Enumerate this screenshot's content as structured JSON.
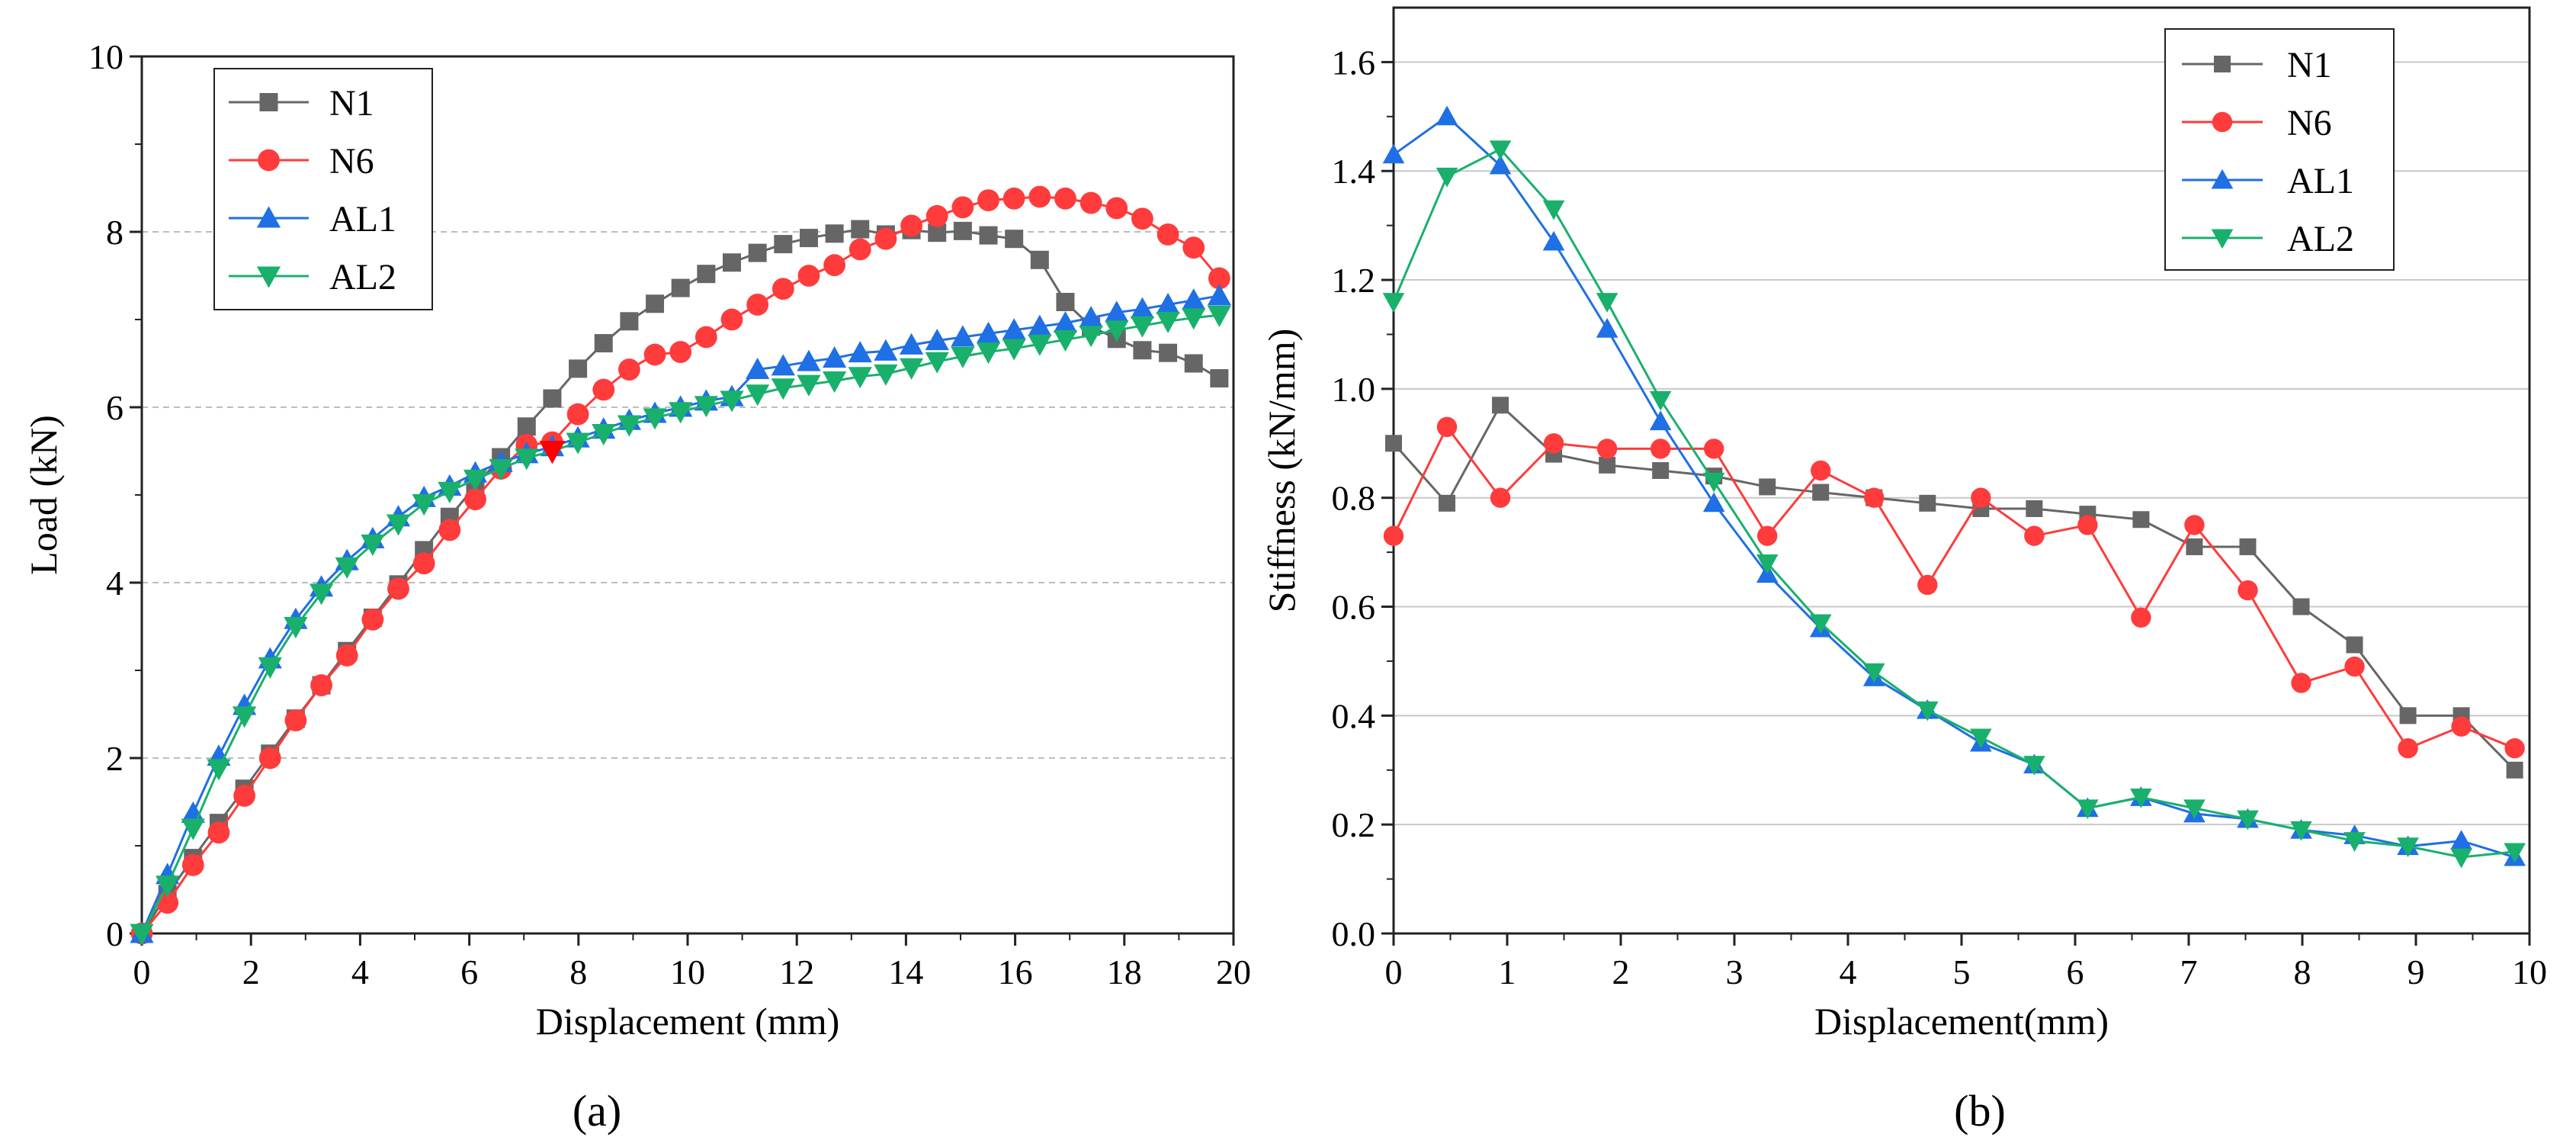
{
  "chart_data": [
    {
      "panel_label": "(a)",
      "type": "line",
      "xlabel": "Displacement (mm)",
      "ylabel": "Load (kN)",
      "xlim": [
        0,
        20
      ],
      "ylim": [
        0,
        10
      ],
      "xticks": [
        0,
        2,
        4,
        6,
        8,
        10,
        12,
        14,
        16,
        18,
        20
      ],
      "yticks": [
        0,
        2,
        4,
        6,
        8,
        10
      ],
      "grid": "dashed horizontal",
      "legend_position": "top-left",
      "series": [
        {
          "name": "N1",
          "color": "#666666",
          "marker": "square",
          "x": [
            0,
            0.47,
            0.94,
            1.41,
            1.88,
            2.35,
            2.82,
            3.29,
            3.76,
            4.23,
            4.7,
            5.17,
            5.64,
            6.11,
            6.58,
            7.05,
            7.52,
            7.99,
            8.46,
            8.93,
            9.4,
            9.87,
            10.34,
            10.81,
            11.28,
            11.75,
            12.22,
            12.69,
            13.16,
            13.63,
            14.1,
            14.57,
            15.04,
            15.51,
            15.98,
            16.45,
            16.92,
            17.39,
            17.86,
            18.33,
            18.8,
            19.27,
            19.74
          ],
          "y": [
            0,
            0.45,
            0.86,
            1.26,
            1.65,
            2.05,
            2.45,
            2.83,
            3.22,
            3.6,
            3.98,
            4.37,
            4.75,
            5.1,
            5.43,
            5.78,
            6.1,
            6.44,
            6.73,
            6.98,
            7.18,
            7.36,
            7.52,
            7.65,
            7.76,
            7.86,
            7.93,
            7.98,
            8.03,
            7.97,
            8.02,
            7.99,
            8.01,
            7.96,
            7.92,
            7.68,
            7.2,
            6.92,
            6.78,
            6.65,
            6.62,
            6.5,
            6.33
          ]
        },
        {
          "name": "N6",
          "color": "#ff3b3b",
          "marker": "circle",
          "x": [
            0,
            0.47,
            0.94,
            1.41,
            1.88,
            2.35,
            2.82,
            3.29,
            3.76,
            4.23,
            4.7,
            5.17,
            5.64,
            6.11,
            6.58,
            7.05,
            7.52,
            7.99,
            8.46,
            8.93,
            9.4,
            9.87,
            10.34,
            10.81,
            11.28,
            11.75,
            12.22,
            12.69,
            13.16,
            13.63,
            14.1,
            14.57,
            15.04,
            15.51,
            15.98,
            16.45,
            16.92,
            17.39,
            17.86,
            18.33,
            18.8,
            19.27,
            19.74
          ],
          "y": [
            0,
            0.35,
            0.78,
            1.15,
            1.57,
            2.0,
            2.43,
            2.83,
            3.17,
            3.58,
            3.93,
            4.22,
            4.6,
            4.95,
            5.3,
            5.57,
            5.6,
            5.92,
            6.2,
            6.43,
            6.6,
            6.63,
            6.8,
            7.0,
            7.17,
            7.35,
            7.5,
            7.62,
            7.8,
            7.92,
            8.07,
            8.18,
            8.28,
            8.36,
            8.38,
            8.4,
            8.38,
            8.33,
            8.27,
            8.15,
            7.97,
            7.82,
            7.47
          ]
        },
        {
          "name": "AL1",
          "color": "#1f6fe5",
          "marker": "triangle-up",
          "x": [
            0,
            0.47,
            0.94,
            1.41,
            1.88,
            2.35,
            2.82,
            3.29,
            3.76,
            4.23,
            4.7,
            5.17,
            5.64,
            6.11,
            6.58,
            7.05,
            7.52,
            7.99,
            8.46,
            8.93,
            9.4,
            9.87,
            10.34,
            10.81,
            11.28,
            11.75,
            12.22,
            12.69,
            13.16,
            13.63,
            14.1,
            14.57,
            15.04,
            15.51,
            15.98,
            16.45,
            16.92,
            17.39,
            17.86,
            18.33,
            18.8,
            19.27,
            19.74
          ],
          "y": [
            0,
            0.67,
            1.37,
            2.02,
            2.6,
            3.13,
            3.58,
            3.95,
            4.25,
            4.5,
            4.75,
            4.97,
            5.1,
            5.25,
            5.37,
            5.47,
            5.55,
            5.65,
            5.75,
            5.85,
            5.93,
            6.0,
            6.07,
            6.12,
            6.43,
            6.47,
            6.52,
            6.56,
            6.62,
            6.64,
            6.71,
            6.76,
            6.8,
            6.84,
            6.88,
            6.92,
            6.96,
            7.02,
            7.08,
            7.12,
            7.17,
            7.22,
            7.27
          ]
        },
        {
          "name": "AL2",
          "color": "#19b06c",
          "marker": "triangle-down",
          "x": [
            0,
            0.47,
            0.94,
            1.41,
            1.88,
            2.35,
            2.82,
            3.29,
            3.76,
            4.23,
            4.7,
            5.17,
            5.64,
            6.11,
            6.58,
            7.05,
            7.52,
            7.99,
            8.46,
            8.93,
            9.4,
            9.87,
            10.34,
            10.81,
            11.28,
            11.75,
            12.22,
            12.69,
            13.16,
            13.63,
            14.1,
            14.57,
            15.04,
            15.51,
            15.98,
            16.45,
            16.92,
            17.39,
            17.86,
            18.33,
            18.8,
            19.27,
            19.74
          ],
          "y": [
            0,
            0.55,
            1.2,
            1.88,
            2.48,
            3.04,
            3.5,
            3.88,
            4.18,
            4.44,
            4.67,
            4.9,
            5.04,
            5.18,
            5.3,
            5.42,
            5.5,
            5.6,
            5.7,
            5.8,
            5.88,
            5.95,
            6.02,
            6.08,
            6.15,
            6.22,
            6.26,
            6.3,
            6.35,
            6.38,
            6.45,
            6.52,
            6.58,
            6.63,
            6.67,
            6.72,
            6.77,
            6.82,
            6.88,
            6.93,
            6.98,
            7.02,
            7.05
          ]
        }
      ],
      "annotations": [
        {
          "type": "marker",
          "shape": "triangle-down",
          "color": "#ff0000",
          "x": 7.52,
          "y": 5.5
        }
      ]
    },
    {
      "panel_label": "(b)",
      "type": "line",
      "xlabel": "Displacement(mm)",
      "ylabel": "Stiffness (kN/mm)",
      "xlim": [
        0,
        10
      ],
      "ylim": [
        0,
        1.7
      ],
      "xticks": [
        0,
        1,
        2,
        3,
        4,
        5,
        6,
        7,
        8,
        9,
        10
      ],
      "yticks": [
        0.0,
        0.2,
        0.4,
        0.6,
        0.8,
        1.0,
        1.2,
        1.4,
        1.6
      ],
      "ytick_labels": [
        "0.0",
        "0.2",
        "0.4",
        "0.6",
        "0.8",
        "1.0",
        "1.2",
        "1.4",
        "1.6"
      ],
      "grid": "horizontal",
      "legend_position": "top-right",
      "series": [
        {
          "name": "N1",
          "color": "#666666",
          "marker": "square",
          "x": [
            0,
            0.47,
            0.94,
            1.41,
            1.88,
            2.35,
            2.82,
            3.29,
            3.76,
            4.23,
            4.7,
            5.17,
            5.64,
            6.11,
            6.58,
            7.05,
            7.52,
            7.99,
            8.46,
            8.93,
            9.4,
            9.87
          ],
          "y": [
            0.9,
            0.79,
            0.97,
            0.88,
            0.86,
            0.85,
            0.84,
            0.82,
            0.81,
            0.8,
            0.79,
            0.78,
            0.78,
            0.77,
            0.76,
            0.71,
            0.71,
            0.6,
            0.53,
            0.4,
            0.4,
            0.3
          ]
        },
        {
          "name": "N6",
          "color": "#ff3b3b",
          "marker": "circle",
          "x": [
            0,
            0.47,
            0.94,
            1.41,
            1.88,
            2.35,
            2.82,
            3.29,
            3.76,
            4.23,
            4.7,
            5.17,
            5.64,
            6.11,
            6.58,
            7.05,
            7.52,
            7.99,
            8.46,
            8.93,
            9.4,
            9.87
          ],
          "y": [
            0.73,
            0.93,
            0.8,
            0.9,
            0.89,
            0.89,
            0.89,
            0.73,
            0.85,
            0.8,
            0.64,
            0.8,
            0.73,
            0.75,
            0.58,
            0.75,
            0.63,
            0.46,
            0.49,
            0.34,
            0.38,
            0.34
          ]
        },
        {
          "name": "AL1",
          "color": "#1f6fe5",
          "marker": "triangle-up",
          "x": [
            0,
            0.47,
            0.94,
            1.41,
            1.88,
            2.35,
            2.82,
            3.29,
            3.76,
            4.23,
            4.7,
            5.17,
            5.64,
            6.11,
            6.58,
            7.05,
            7.52,
            7.99,
            8.46,
            8.93,
            9.4,
            9.87
          ],
          "y": [
            1.43,
            1.5,
            1.41,
            1.27,
            1.11,
            0.94,
            0.79,
            0.66,
            0.56,
            0.47,
            0.41,
            0.35,
            0.31,
            0.23,
            0.25,
            0.22,
            0.21,
            0.19,
            0.18,
            0.16,
            0.17,
            0.14
          ]
        },
        {
          "name": "AL2",
          "color": "#19b06c",
          "marker": "triangle-down",
          "x": [
            0,
            0.47,
            0.94,
            1.41,
            1.88,
            2.35,
            2.82,
            3.29,
            3.76,
            4.23,
            4.7,
            5.17,
            5.64,
            6.11,
            6.58,
            7.05,
            7.52,
            7.99,
            8.46,
            8.93,
            9.4,
            9.87
          ],
          "y": [
            1.16,
            1.39,
            1.44,
            1.33,
            1.16,
            0.98,
            0.83,
            0.68,
            0.57,
            0.48,
            0.41,
            0.36,
            0.31,
            0.23,
            0.25,
            0.23,
            0.21,
            0.19,
            0.17,
            0.16,
            0.14,
            0.15
          ]
        }
      ]
    }
  ]
}
